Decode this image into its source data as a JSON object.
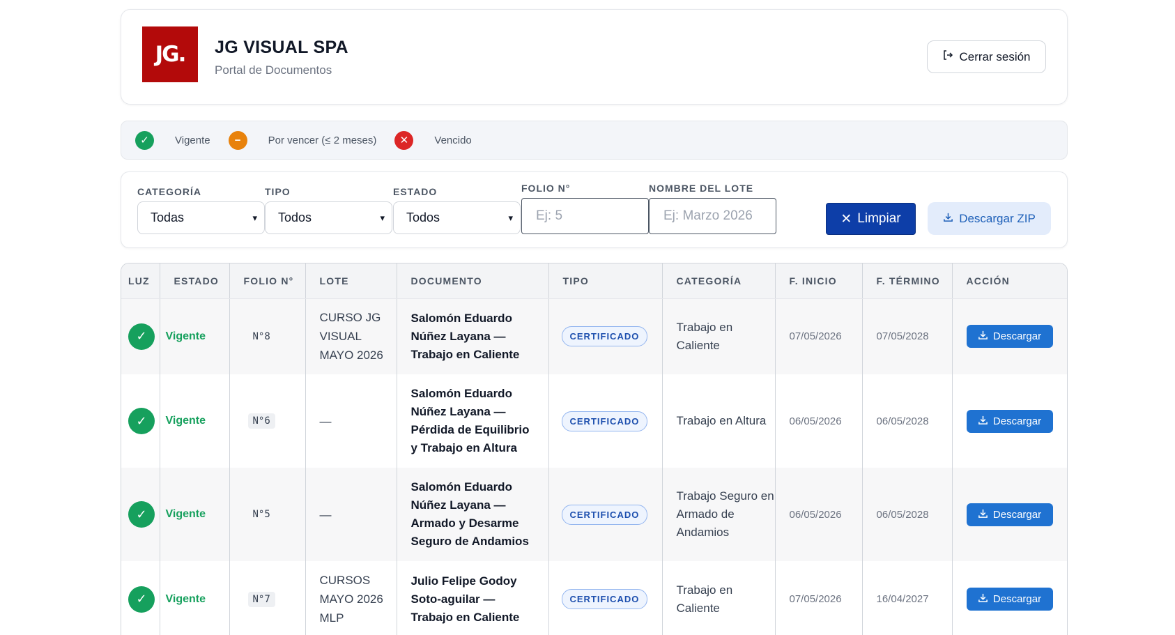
{
  "header": {
    "logo_text": "JG.",
    "company": "JG VISUAL SPA",
    "subtitle": "Portal de Documentos",
    "logout_label": "Cerrar sesión"
  },
  "legend": [
    {
      "label": "Vigente",
      "color": "#16a05d",
      "icon": "check-icon"
    },
    {
      "label": "Por vencer (≤ 2 meses)",
      "color": "#e8820c",
      "icon": "minus-icon"
    },
    {
      "label": "Vencido",
      "color": "#dc2626",
      "icon": "x-icon"
    }
  ],
  "filters": {
    "categoria": {
      "label": "CATEGORÍA",
      "value": "Todas"
    },
    "tipo": {
      "label": "TIPO",
      "value": "Todos"
    },
    "estado": {
      "label": "ESTADO",
      "value": "Todos"
    },
    "folio": {
      "label": "FOLIO N°",
      "placeholder": "Ej: 5"
    },
    "lote": {
      "label": "NOMBRE DEL LOTE",
      "placeholder": "Ej: Marzo 2026"
    },
    "clear_label": "Limpiar",
    "zip_label": "Descargar ZIP"
  },
  "table": {
    "headers": [
      "LUZ",
      "ESTADO",
      "FOLIO N°",
      "LOTE",
      "DOCUMENTO",
      "TIPO",
      "CATEGORÍA",
      "F. INICIO",
      "F. TÉRMINO",
      "ACCIÓN"
    ],
    "rows": [
      {
        "estado": "Vigente",
        "folio": "N°8",
        "lote": "CURSO JG VISUAL MAYO 2026",
        "documento": "Salomón Eduardo Núñez Layana — Trabajo en Caliente",
        "tipo": "CERTIFICADO",
        "categoria": "Trabajo en Caliente",
        "inicio": "07/05/2026",
        "termino": "07/05/2028",
        "accion": "Descargar"
      },
      {
        "estado": "Vigente",
        "folio": "N°6",
        "lote": "—",
        "documento": "Salomón Eduardo Núñez Layana — Pérdida de Equilibrio y Trabajo en Altura",
        "tipo": "CERTIFICADO",
        "categoria": "Trabajo en Altura",
        "inicio": "06/05/2026",
        "termino": "06/05/2028",
        "accion": "Descargar"
      },
      {
        "estado": "Vigente",
        "folio": "N°5",
        "lote": "—",
        "documento": "Salomón Eduardo Núñez Layana — Armado y Desarme Seguro de Andamios",
        "tipo": "CERTIFICADO",
        "categoria": "Trabajo Seguro en Armado de Andamios",
        "inicio": "06/05/2026",
        "termino": "06/05/2028",
        "accion": "Descargar"
      },
      {
        "estado": "Vigente",
        "folio": "N°7",
        "lote": "CURSOS MAYO 2026 MLP",
        "documento": "Julio Felipe Godoy Soto-aguilar — Trabajo en Caliente",
        "tipo": "CERTIFICADO",
        "categoria": "Trabajo en Caliente",
        "inicio": "07/05/2026",
        "termino": "16/04/2027",
        "accion": "Descargar"
      }
    ]
  }
}
